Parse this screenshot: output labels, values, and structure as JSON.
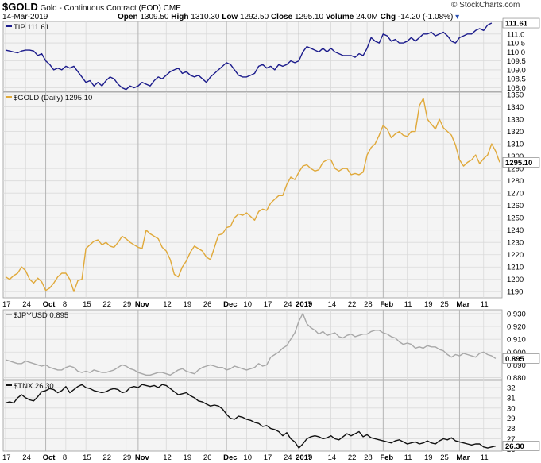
{
  "header": {
    "symbol": "$GOLD",
    "description": "Gold - Continuous Contract (EOD)",
    "exchange": "CME",
    "date": "14-Mar-2019",
    "open_label": "Open",
    "open": "1309.50",
    "high_label": "High",
    "high": "1310.30",
    "low_label": "Low",
    "low": "1292.50",
    "close_label": "Close",
    "close": "1295.10",
    "volume_label": "Volume",
    "volume": "24.0M",
    "chg_label": "Chg",
    "chg": "-14.20 (-1.08%)",
    "brand": "© StockCharts.com"
  },
  "colors": {
    "tip": "#1c1c8c",
    "gold": "#e0a93a",
    "jpyusd": "#a8a8a8",
    "tnx": "#111111",
    "grid": "#d9d9d9",
    "panel_bg": "#f4f4f4"
  },
  "x_axis": {
    "ticks": [
      {
        "label": "17",
        "i": 0
      },
      {
        "label": "24",
        "i": 5
      },
      {
        "label": "Oct",
        "i": 10
      },
      {
        "label": "8",
        "i": 15
      },
      {
        "label": "15",
        "i": 20
      },
      {
        "label": "22",
        "i": 25
      },
      {
        "label": "29",
        "i": 30
      },
      {
        "label": "Nov",
        "i": 33
      },
      {
        "label": "12",
        "i": 40
      },
      {
        "label": "19",
        "i": 45
      },
      {
        "label": "26",
        "i": 50
      },
      {
        "label": "Dec",
        "i": 55
      },
      {
        "label": "10",
        "i": 60
      },
      {
        "label": "17",
        "i": 65
      },
      {
        "label": "24",
        "i": 70
      },
      {
        "label": "2019",
        "i": 73
      },
      {
        "label": "7",
        "i": 76
      },
      {
        "label": "14",
        "i": 81
      },
      {
        "label": "22",
        "i": 86
      },
      {
        "label": "28",
        "i": 90
      },
      {
        "label": "Feb",
        "i": 94
      },
      {
        "label": "11",
        "i": 100
      },
      {
        "label": "19",
        "i": 105
      },
      {
        "label": "25",
        "i": 109
      },
      {
        "label": "Mar",
        "i": 113
      },
      {
        "label": "11",
        "i": 119
      }
    ],
    "major": [
      10,
      33,
      55,
      73,
      94,
      113
    ]
  },
  "chart_data": [
    {
      "type": "line",
      "title": "TIP 111.61",
      "last": "111.61",
      "ylim": [
        107.8,
        111.7
      ],
      "y_ticks": [
        111.0,
        110.5,
        110.0,
        109.5,
        109.0,
        108.5,
        108.0
      ],
      "series": [
        {
          "name": "TIP",
          "values": [
            110.1,
            110.05,
            110.0,
            109.95,
            110.05,
            110.1,
            110.1,
            110.05,
            109.8,
            109.9,
            109.5,
            109.3,
            109.0,
            109.1,
            109.0,
            109.2,
            109.1,
            109.2,
            108.9,
            108.6,
            108.3,
            108.4,
            108.1,
            108.3,
            108.1,
            108.4,
            108.6,
            108.5,
            108.2,
            108.0,
            107.9,
            108.1,
            108.0,
            108.1,
            108.3,
            108.2,
            108.1,
            108.4,
            108.6,
            108.5,
            108.7,
            108.9,
            109.0,
            109.1,
            108.8,
            108.9,
            108.7,
            108.6,
            108.7,
            108.5,
            108.3,
            108.6,
            108.8,
            109.0,
            109.2,
            109.4,
            109.3,
            109.0,
            108.7,
            108.6,
            108.6,
            108.7,
            108.8,
            109.2,
            109.3,
            109.1,
            109.2,
            109.0,
            109.3,
            109.2,
            109.3,
            109.5,
            109.4,
            109.5,
            110.0,
            110.3,
            110.2,
            110.1,
            110.0,
            110.2,
            110.0,
            110.2,
            110.0,
            109.9,
            109.8,
            109.8,
            109.8,
            109.7,
            109.9,
            109.8,
            110.2,
            110.8,
            110.6,
            110.5,
            111.0,
            110.9,
            110.6,
            110.7,
            110.5,
            110.5,
            110.6,
            110.8,
            110.6,
            110.8,
            111.0,
            111.0,
            111.1,
            110.9,
            111.0,
            111.1,
            110.9,
            110.6,
            110.5,
            110.8,
            110.9,
            111.0,
            111.0,
            111.2,
            111.3,
            111.2,
            111.5,
            111.61
          ]
        }
      ]
    },
    {
      "type": "line",
      "title": "$GOLD (Daily) 1295.10",
      "last": "1295.10",
      "ylim": [
        1185,
        1352
      ],
      "y_ticks": [
        1350,
        1340,
        1330,
        1320,
        1310,
        1300,
        1290,
        1280,
        1270,
        1260,
        1250,
        1240,
        1230,
        1220,
        1210,
        1200,
        1190
      ],
      "series": [
        {
          "name": "$GOLD",
          "values": [
            1202,
            1200,
            1203,
            1205,
            1210,
            1207,
            1200,
            1197,
            1201,
            1198,
            1191,
            1193,
            1197,
            1202,
            1205,
            1205,
            1200,
            1190,
            1199,
            1200,
            1225,
            1228,
            1231,
            1232,
            1228,
            1230,
            1227,
            1226,
            1230,
            1235,
            1233,
            1230,
            1228,
            1226,
            1225,
            1240,
            1237,
            1235,
            1233,
            1226,
            1223,
            1216,
            1204,
            1202,
            1210,
            1215,
            1222,
            1227,
            1225,
            1223,
            1218,
            1216,
            1226,
            1236,
            1237,
            1242,
            1243,
            1250,
            1253,
            1252,
            1254,
            1251,
            1248,
            1255,
            1257,
            1256,
            1262,
            1265,
            1268,
            1268,
            1277,
            1283,
            1281,
            1287,
            1292,
            1293,
            1290,
            1288,
            1289,
            1295,
            1297,
            1297,
            1290,
            1288,
            1290,
            1290,
            1285,
            1286,
            1285,
            1287,
            1301,
            1307,
            1310,
            1317,
            1325,
            1322,
            1315,
            1318,
            1320,
            1317,
            1316,
            1320,
            1320,
            1341,
            1347,
            1330,
            1326,
            1322,
            1330,
            1323,
            1320,
            1317,
            1309,
            1297,
            1292,
            1295,
            1297,
            1301,
            1294,
            1298,
            1301,
            1310,
            1304,
            1295
          ]
        }
      ]
    },
    {
      "type": "line",
      "title": "$JPYUSD 0.895",
      "last": "0.895",
      "ylim": [
        0.8785,
        0.933
      ],
      "y_ticks": [
        0.93,
        0.92,
        0.91,
        0.9,
        0.89,
        0.88
      ],
      "series": [
        {
          "name": "$JPYUSD",
          "values": [
            0.894,
            0.893,
            0.892,
            0.891,
            0.891,
            0.893,
            0.892,
            0.891,
            0.89,
            0.889,
            0.89,
            0.888,
            0.887,
            0.886,
            0.886,
            0.888,
            0.889,
            0.888,
            0.885,
            0.884,
            0.885,
            0.884,
            0.886,
            0.885,
            0.884,
            0.884,
            0.885,
            0.886,
            0.888,
            0.89,
            0.889,
            0.887,
            0.886,
            0.884,
            0.883,
            0.882,
            0.882,
            0.883,
            0.884,
            0.884,
            0.883,
            0.882,
            0.884,
            0.886,
            0.887,
            0.885,
            0.884,
            0.883,
            0.886,
            0.888,
            0.889,
            0.89,
            0.889,
            0.888,
            0.888,
            0.886,
            0.887,
            0.889,
            0.888,
            0.887,
            0.886,
            0.887,
            0.888,
            0.891,
            0.889,
            0.89,
            0.896,
            0.898,
            0.9,
            0.903,
            0.905,
            0.91,
            0.915,
            0.924,
            0.93,
            0.922,
            0.919,
            0.917,
            0.914,
            0.916,
            0.913,
            0.914,
            0.915,
            0.912,
            0.911,
            0.913,
            0.914,
            0.912,
            0.913,
            0.914,
            0.914,
            0.916,
            0.917,
            0.917,
            0.915,
            0.914,
            0.912,
            0.911,
            0.908,
            0.906,
            0.907,
            0.906,
            0.903,
            0.904,
            0.903,
            0.905,
            0.904,
            0.904,
            0.902,
            0.901,
            0.898,
            0.896,
            0.898,
            0.897,
            0.899,
            0.898,
            0.897,
            0.896,
            0.899,
            0.9,
            0.898,
            0.897,
            0.895
          ]
        }
      ]
    },
    {
      "type": "line",
      "title": "$TNX 26.30",
      "last": "26.30",
      "ylim": [
        25.8,
        32.7
      ],
      "y_ticks": [
        32,
        31,
        30,
        29,
        28,
        27,
        26
      ],
      "series": [
        {
          "name": "$TNX",
          "values": [
            30.5,
            30.6,
            30.5,
            31.0,
            31.3,
            31.0,
            30.8,
            30.7,
            31.1,
            31.6,
            31.7,
            31.9,
            31.8,
            31.5,
            31.7,
            32.1,
            31.5,
            31.8,
            32.1,
            32.3,
            32.0,
            31.9,
            31.7,
            31.6,
            31.5,
            31.6,
            31.8,
            31.9,
            31.8,
            31.5,
            31.6,
            32.0,
            32.1,
            32.0,
            32.3,
            32.2,
            32.1,
            32.2,
            32.0,
            32.3,
            32.2,
            31.9,
            31.6,
            31.3,
            31.4,
            31.5,
            31.2,
            31.0,
            30.7,
            30.6,
            30.4,
            30.2,
            30.3,
            30.2,
            29.9,
            29.4,
            29.0,
            28.9,
            29.2,
            29.1,
            28.9,
            28.8,
            28.6,
            28.5,
            28.2,
            28.3,
            28.0,
            27.9,
            27.7,
            27.3,
            27.6,
            27.0,
            26.7,
            26.1,
            26.5,
            27.0,
            27.2,
            27.3,
            27.2,
            27.0,
            27.1,
            27.3,
            27.0,
            26.9,
            27.2,
            27.5,
            27.3,
            27.5,
            27.7,
            27.2,
            27.4,
            27.1,
            27.0,
            26.9,
            26.8,
            26.7,
            26.6,
            26.8,
            26.9,
            26.7,
            26.5,
            26.6,
            26.7,
            26.5,
            26.6,
            26.8,
            26.6,
            26.5,
            26.8,
            27.0,
            26.9,
            27.1,
            26.8,
            26.7,
            26.6,
            26.5,
            26.4,
            26.5,
            26.5,
            26.2,
            26.1,
            26.2,
            26.3
          ]
        }
      ]
    }
  ]
}
